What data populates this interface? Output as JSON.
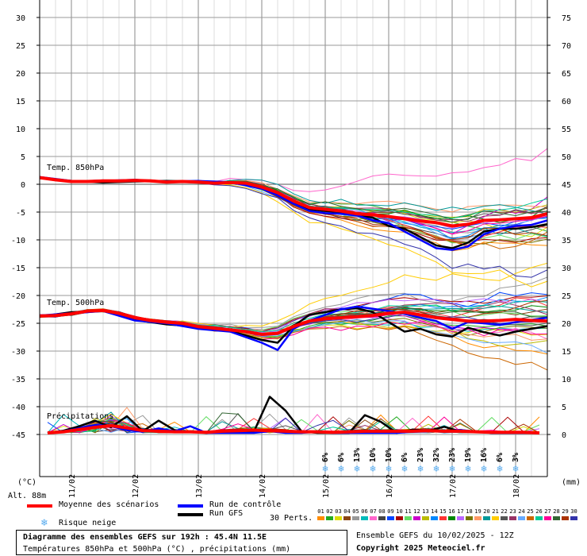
{
  "chart_data": {
    "type": "line",
    "title": "Diagramme des ensembles GEFS sur 192h : 45.4N 11.5E",
    "subtitle": "Températures 850hPa et 500hPa (°C) , précipitations (mm)",
    "left_axis": {
      "unit": "(°C)",
      "ticks": [
        30,
        25,
        20,
        15,
        10,
        5,
        0,
        -5,
        -10,
        -15,
        -20,
        -25,
        -30,
        -35,
        -40,
        -45
      ]
    },
    "right_axis": {
      "unit": "(mm)",
      "ticks": [
        75,
        70,
        65,
        60,
        55,
        50,
        45,
        40,
        35,
        30,
        25,
        20,
        15,
        10,
        5,
        0
      ]
    },
    "x_tick_labels": [
      "11/02",
      "12/02",
      "13/02",
      "14/02",
      "15/02",
      "16/02",
      "17/02",
      "18/02"
    ],
    "altitude_label": "Alt. 88m",
    "panel_labels": {
      "t850": "Temp. 850hPa",
      "t500": "Temp. 500hPa",
      "precip": "Précipitations"
    },
    "snow_risk": [
      "6%",
      "6%",
      "13%",
      "10%",
      "10%",
      "6%",
      "23%",
      "32%",
      "23%",
      "19%",
      "16%",
      "6%",
      "3%"
    ],
    "series": [
      {
        "name": "Moyenne des scénarios",
        "group": "t850",
        "x": [
          0,
          6,
          12,
          18,
          24,
          30,
          36,
          42,
          48,
          54,
          60,
          66,
          72,
          78,
          84,
          90,
          96,
          102,
          108,
          114,
          120,
          126,
          132,
          138,
          144,
          150,
          156,
          162,
          168,
          174,
          180,
          186,
          192
        ],
        "values": [
          1.2,
          0.8,
          0.5,
          0.5,
          0.6,
          0.6,
          0.7,
          0.6,
          0.4,
          0.5,
          0.4,
          0.2,
          0.3,
          0.2,
          -0.5,
          -1.5,
          -3.0,
          -4.2,
          -4.5,
          -4.8,
          -5.3,
          -5.5,
          -5.8,
          -6.2,
          -6.6,
          -6.9,
          -7.5,
          -7.2,
          -6.5,
          -6.4,
          -6.2,
          -6.0,
          -5.3
        ]
      },
      {
        "name": "Run de contrôle",
        "group": "t850",
        "x": [
          0,
          12,
          24,
          36,
          48,
          60,
          72,
          84,
          90,
          96,
          102,
          108,
          114,
          120,
          126,
          132,
          138,
          144,
          150,
          156,
          162,
          168,
          174,
          180,
          186,
          192
        ],
        "values": [
          1.3,
          0.6,
          0.6,
          0.8,
          0.5,
          0.6,
          0.4,
          -0.8,
          -2,
          -3.5,
          -4.8,
          -5.2,
          -5.3,
          -5.6,
          -6.5,
          -7.0,
          -8.5,
          -10.0,
          -11.5,
          -11.8,
          -11.2,
          -9.0,
          -8.0,
          -7.5,
          -7.3,
          -6.5
        ]
      },
      {
        "name": "Run GFS",
        "group": "t850",
        "x": [
          0,
          12,
          24,
          36,
          48,
          60,
          72,
          84,
          90,
          96,
          102,
          108,
          114,
          120,
          126,
          132,
          138,
          144,
          150,
          156,
          162,
          168,
          174,
          180,
          186,
          192
        ],
        "values": [
          1.1,
          0.6,
          0.3,
          0.5,
          0.6,
          0.5,
          0.3,
          -0.5,
          -2.0,
          -3.5,
          -4.5,
          -4.8,
          -5.0,
          -5.5,
          -6.0,
          -7.5,
          -8.0,
          -9.5,
          -11.0,
          -11.5,
          -10.5,
          -8.5,
          -8.0,
          -8.0,
          -7.7,
          -7.2
        ]
      },
      {
        "name": "Moyenne des scénarios",
        "group": "t500",
        "x": [
          0,
          6,
          12,
          18,
          24,
          30,
          36,
          42,
          48,
          54,
          60,
          66,
          72,
          78,
          84,
          90,
          96,
          102,
          108,
          114,
          120,
          126,
          132,
          138,
          144,
          150,
          156,
          162,
          168,
          174,
          180,
          186,
          192
        ],
        "values": [
          -23.7,
          -23.6,
          -23.3,
          -22.8,
          -22.7,
          -23.2,
          -24.0,
          -24.5,
          -24.8,
          -25.0,
          -25.6,
          -25.9,
          -26.2,
          -26.5,
          -27.0,
          -26.8,
          -25.6,
          -24.6,
          -24.2,
          -24.0,
          -23.8,
          -23.6,
          -23.2,
          -23.0,
          -23.5,
          -24.0,
          -24.3,
          -24.6,
          -24.6,
          -24.5,
          -24.3,
          -24.5,
          -24.6
        ]
      },
      {
        "name": "Run de contrôle",
        "group": "t500",
        "x": [
          0,
          12,
          24,
          36,
          48,
          60,
          72,
          84,
          90,
          96,
          102,
          108,
          114,
          120,
          126,
          132,
          138,
          144,
          150,
          156,
          162,
          168,
          174,
          180,
          186,
          192
        ],
        "values": [
          -23.6,
          -23.2,
          -22.8,
          -24.5,
          -25.0,
          -26.0,
          -26.5,
          -28.5,
          -29.8,
          -26.0,
          -24.5,
          -23.5,
          -22.5,
          -22.0,
          -22.4,
          -22.8,
          -23.3,
          -24.0,
          -24.6,
          -26.0,
          -24.8,
          -25.0,
          -25.3,
          -24.8,
          -24.4,
          -24.0
        ]
      },
      {
        "name": "Run GFS",
        "group": "t500",
        "x": [
          0,
          12,
          24,
          36,
          48,
          60,
          72,
          84,
          90,
          96,
          102,
          108,
          114,
          120,
          126,
          132,
          138,
          144,
          150,
          156,
          162,
          168,
          174,
          180,
          186,
          192
        ],
        "values": [
          -23.8,
          -23.0,
          -22.8,
          -24.4,
          -25.2,
          -25.6,
          -26.4,
          -28.0,
          -28.5,
          -25.5,
          -23.5,
          -23.0,
          -22.5,
          -22.3,
          -23.0,
          -24.8,
          -26.5,
          -26.0,
          -27.0,
          -27.4,
          -25.8,
          -26.6,
          -27.2,
          -26.5,
          -26.0,
          -25.5
        ]
      },
      {
        "name": "Moyenne des scénarios",
        "group": "precip",
        "x": [
          3,
          9,
          15,
          21,
          27,
          33,
          39,
          45,
          51,
          57,
          63,
          69,
          75,
          81,
          87,
          93,
          99,
          105,
          111,
          117,
          123,
          129,
          135,
          141,
          147,
          153,
          159,
          165,
          171,
          177,
          183,
          189
        ],
        "values": [
          0,
          0.2,
          0.6,
          1.0,
          1.3,
          0.9,
          0.4,
          0.3,
          0.2,
          0.2,
          0.1,
          0.3,
          0.4,
          0.5,
          0.4,
          0.3,
          0.2,
          0.2,
          0.1,
          0.2,
          0.3,
          0.3,
          0.3,
          0.3,
          0.4,
          0.3,
          0.3,
          0.2,
          0.1,
          0.1,
          0.1,
          0
        ]
      },
      {
        "name": "Run de contrôle",
        "group": "precip",
        "x": [
          3,
          9,
          15,
          21,
          27,
          33,
          39,
          45,
          51,
          57,
          63,
          69,
          75,
          81,
          87,
          93,
          99,
          105,
          111,
          117,
          123,
          129,
          135,
          141,
          147,
          153,
          159,
          165,
          171,
          177,
          183,
          189
        ],
        "values": [
          0,
          0.3,
          0.8,
          1.4,
          1.2,
          0.5,
          0.2,
          0.8,
          0.3,
          1.2,
          0,
          0,
          0,
          0,
          0.3,
          0,
          0,
          0.2,
          0,
          0,
          0,
          0,
          0,
          0.2,
          0.3,
          0.3,
          0.5,
          0.2,
          0,
          0,
          0,
          0
        ]
      },
      {
        "name": "Run GFS",
        "group": "precip",
        "x": [
          3,
          9,
          15,
          21,
          27,
          33,
          39,
          45,
          51,
          57,
          63,
          69,
          75,
          81,
          87,
          93,
          99,
          105,
          111,
          117,
          123,
          129,
          135,
          141,
          147,
          153,
          159,
          165,
          171,
          177,
          183,
          189
        ],
        "values": [
          0,
          0.4,
          1.2,
          2.2,
          1.0,
          3.0,
          0.3,
          2.2,
          0.5,
          0.2,
          0,
          0.3,
          0.1,
          0.2,
          6.5,
          4.0,
          0.3,
          0,
          0,
          0,
          3.2,
          2.0,
          0,
          0.6,
          0.4,
          1.1,
          0.3,
          0.2,
          0,
          0,
          0,
          0
        ]
      }
    ]
  },
  "legend": {
    "mean_label": "Moyenne des scénarios",
    "control_label": "Run de contrôle",
    "gfs_label": "Run GFS",
    "snow_label": "Risque neige",
    "perts_label": "30 Perts.",
    "member_numbers": [
      "01",
      "02",
      "03",
      "04",
      "05",
      "06",
      "07",
      "08",
      "09",
      "10",
      "11",
      "12",
      "13",
      "14",
      "15",
      "16",
      "17",
      "18",
      "19",
      "20",
      "21",
      "22",
      "23",
      "24",
      "25",
      "26",
      "27",
      "28",
      "29",
      "30"
    ],
    "member_colors": [
      "#ff8c00",
      "#22aa22",
      "#dddd00",
      "#8a4513",
      "#999999",
      "#00bbbb",
      "#ff66cc",
      "#444444",
      "#0044ff",
      "#aa0000",
      "#66dd66",
      "#cc00cc",
      "#bbbb00",
      "#0088ff",
      "#ff3333",
      "#008800",
      "#bb66ff",
      "#777700",
      "#ff9966",
      "#009999",
      "#ffcc00",
      "#555555",
      "#993366",
      "#66aaff",
      "#cc6600",
      "#00cc99",
      "#ff0099",
      "#336633",
      "#aa3300",
      "#3333aa"
    ]
  },
  "colors": {
    "mean": "#ff0000",
    "control": "#0000ff",
    "gfs": "#000000",
    "snow": "#55aaee"
  },
  "footer": {
    "title": "Diagramme des ensembles GEFS sur 192h : 45.4N 11.5E",
    "subtitle": "Températures 850hPa et 500hPa (°C) , précipitations (mm)",
    "run": "Ensemble GEFS du 10/02/2025 - 12Z",
    "copyright": "Copyright 2025 Meteociel.fr"
  }
}
